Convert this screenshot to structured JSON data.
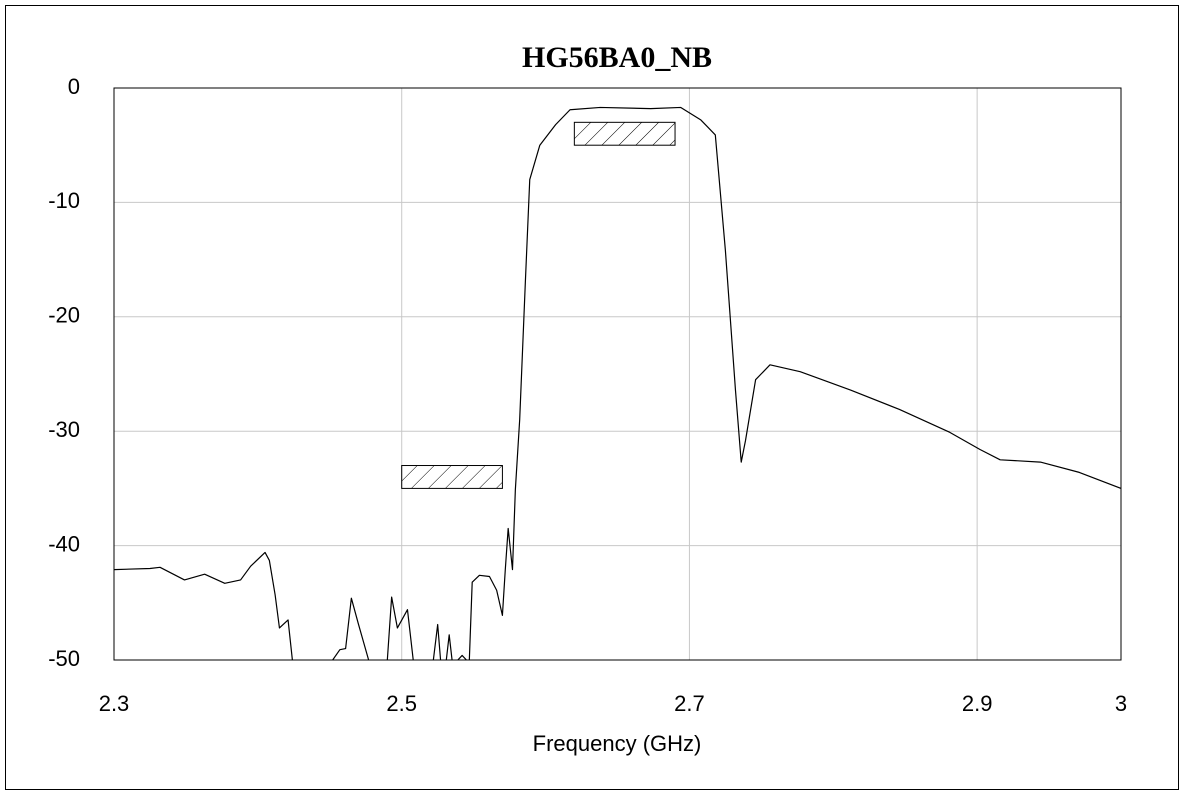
{
  "chart_data": {
    "type": "line",
    "title": "HG56BA0_NB",
    "x_label": "Frequency (GHz)",
    "x": [
      2.3,
      2.325,
      2.332,
      2.349,
      2.363,
      2.377,
      2.388,
      2.395,
      2.405,
      2.408,
      2.412,
      2.415,
      2.421,
      2.424,
      null,
      2.452,
      2.457,
      2.461,
      2.465,
      2.47,
      2.477,
      null,
      2.49,
      2.493,
      2.497,
      2.504,
      2.508,
      null,
      2.522,
      2.525,
      2.527,
      null,
      2.531,
      2.533,
      2.535,
      null,
      2.539,
      2.542,
      2.545,
      null,
      2.547,
      2.549,
      2.554,
      2.561,
      2.566,
      2.57,
      2.572,
      2.574,
      2.577,
      2.579,
      2.582,
      2.586,
      2.589,
      2.596,
      2.607,
      2.617,
      2.638,
      2.673,
      2.694,
      2.708,
      2.718,
      2.725,
      2.732,
      2.736,
      2.739,
      2.746,
      2.756,
      2.777,
      2.812,
      2.846,
      2.881,
      2.902,
      2.916,
      2.944,
      2.971,
      3.0
    ],
    "values": [
      -42.1,
      -42.0,
      -41.9,
      -43.0,
      -42.5,
      -43.3,
      -43.0,
      -41.8,
      -40.6,
      -41.3,
      -44.3,
      -47.2,
      -46.5,
      -50,
      null,
      -50,
      -49.1,
      -49,
      -44.6,
      -46.9,
      -50,
      null,
      -50,
      -44.5,
      -47.2,
      -45.6,
      -50,
      null,
      -50,
      -46.9,
      -50,
      null,
      -50,
      -47.8,
      -50,
      null,
      -50,
      -49.6,
      -50,
      null,
      -50,
      -43.2,
      -42.6,
      -42.7,
      -43.9,
      -46.1,
      -42.1,
      -38.5,
      -42.1,
      -35.1,
      -29,
      -16.8,
      -8,
      -5,
      -3.2,
      -1.9,
      -1.7,
      -1.8,
      -1.7,
      -2.8,
      -4.1,
      -14.2,
      -26.4,
      -32.7,
      -30.8,
      -25.5,
      -24.2,
      -24.8,
      -26.4,
      -28.1,
      -30.1,
      -31.6,
      -32.5,
      -32.7,
      -33.6,
      -35
    ],
    "color": "#000000",
    "masks": [
      {
        "x": [
          2.5,
          2.57
        ],
        "y": [
          -35,
          -33
        ]
      },
      {
        "x": [
          2.62,
          2.69
        ],
        "y": [
          -5,
          -3
        ]
      }
    ],
    "xlim": [
      2.3,
      3
    ],
    "xticks": [
      2.3,
      2.5,
      2.7,
      2.9,
      3
    ],
    "ylim": [
      -50,
      0
    ],
    "yticks": [
      0,
      -10,
      -20,
      -30,
      -40,
      -50
    ],
    "grid": true
  }
}
